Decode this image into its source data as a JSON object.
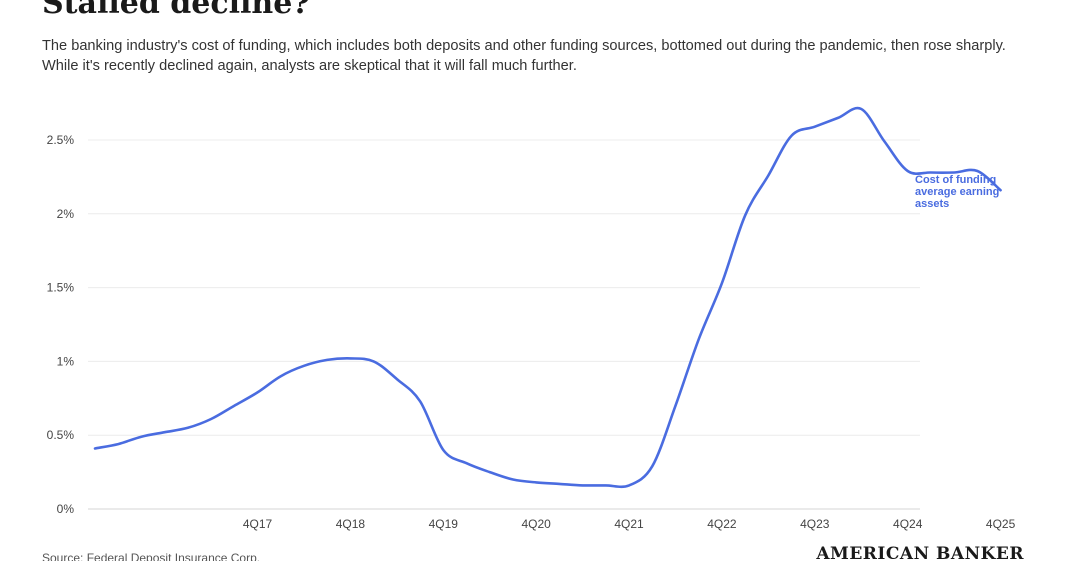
{
  "header": {
    "title": "Stalled decline?",
    "subtitle": "The banking industry's cost of funding, which includes both deposits and other funding sources, bottomed out during the pandemic, then rose sharply. While it's recently declined again, analysts are skeptical that it will fall much further."
  },
  "footer": {
    "source": "Source: Federal Deposit Insurance Corp.",
    "logo": "AMERICAN BANKER"
  },
  "colors": {
    "line": "#4a6ce0",
    "grid": "#ececec"
  },
  "chart_data": {
    "type": "line",
    "title": "Stalled decline?",
    "ylim": [
      0,
      2.75
    ],
    "yticks": [
      {
        "value": 0,
        "label": "0%"
      },
      {
        "value": 0.5,
        "label": "0.5%"
      },
      {
        "value": 1,
        "label": "1%"
      },
      {
        "value": 1.5,
        "label": "1.5%"
      },
      {
        "value": 2,
        "label": "2%"
      },
      {
        "value": 2.5,
        "label": "2.5%"
      }
    ],
    "xticks": [
      "4Q17",
      "4Q18",
      "4Q19",
      "4Q20",
      "4Q21",
      "4Q22",
      "4Q23",
      "4Q24",
      "4Q25"
    ],
    "grid": true,
    "legend": "inline-right",
    "series": [
      {
        "name": "Cost of funding average earning assets",
        "label_lines": [
          "Cost of funding",
          "average earning",
          "assets"
        ],
        "x": [
          "1Q16",
          "2Q16",
          "3Q16",
          "4Q16",
          "1Q17",
          "2Q17",
          "3Q17",
          "4Q17",
          "1Q18",
          "2Q18",
          "3Q18",
          "4Q18",
          "1Q19",
          "2Q19",
          "3Q19",
          "4Q19",
          "1Q20",
          "2Q20",
          "3Q20",
          "4Q20",
          "1Q21",
          "2Q21",
          "3Q21",
          "4Q21",
          "1Q22",
          "2Q22",
          "3Q22",
          "4Q22",
          "1Q23",
          "2Q23",
          "3Q23",
          "4Q23",
          "1Q24",
          "2Q24",
          "3Q24",
          "4Q24",
          "1Q25",
          "2Q25",
          "3Q25",
          "4Q25"
        ],
        "values": [
          0.41,
          0.44,
          0.49,
          0.52,
          0.55,
          0.61,
          0.7,
          0.79,
          0.9,
          0.97,
          1.01,
          1.02,
          1.0,
          0.88,
          0.73,
          0.4,
          0.31,
          0.25,
          0.2,
          0.18,
          0.17,
          0.16,
          0.16,
          0.16,
          0.29,
          0.7,
          1.15,
          1.53,
          1.99,
          2.26,
          2.53,
          2.59,
          2.65,
          2.71,
          2.49,
          2.29,
          2.28,
          2.28,
          2.29,
          2.16
        ]
      }
    ]
  }
}
